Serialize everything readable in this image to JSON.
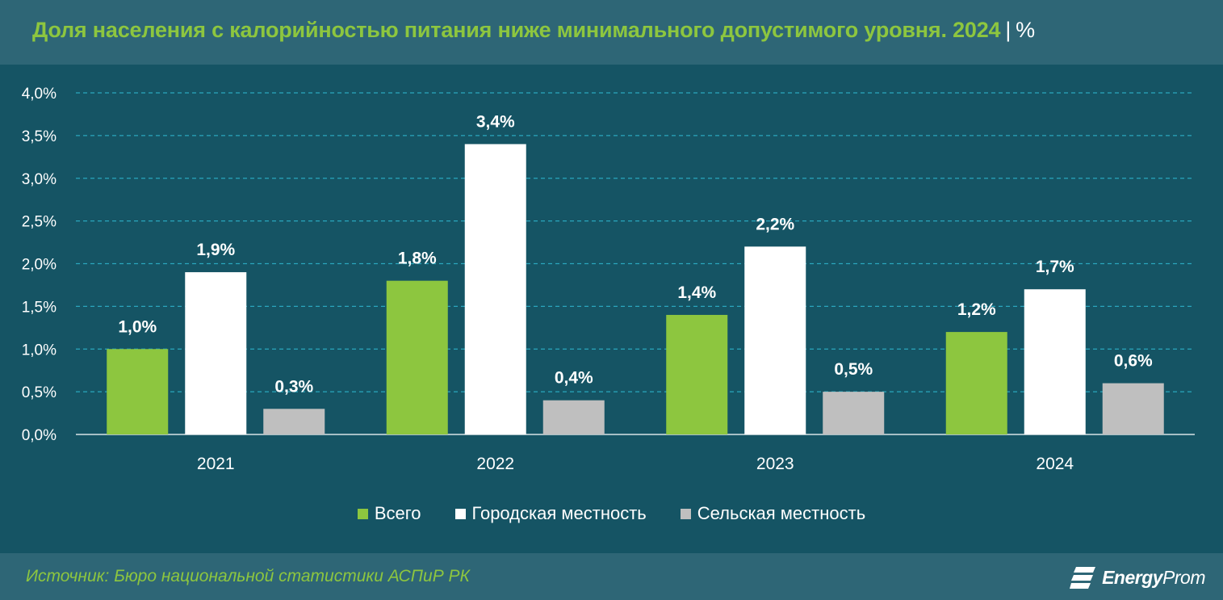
{
  "header": {
    "title": "Доля населения с калорийностью питания ниже минимального допустимого уровня. 2024",
    "separator": "|",
    "unit": "%"
  },
  "footer": {
    "source": "Источник: Бюро национальной статистики АСПиР РК",
    "logo_bold": "Energy",
    "logo_regular": "Prom"
  },
  "colors": {
    "background": "#155464",
    "bar_total": "#8dc63f",
    "bar_urban": "#ffffff",
    "bar_rural": "#bfbfbf",
    "gridline": "#2aa6bd",
    "text": "#ffffff",
    "title": "#8dc63f"
  },
  "chart_data": {
    "type": "bar",
    "title": "Доля населения с калорийностью питания ниже минимального допустимого уровня. 2024",
    "categories": [
      "2021",
      "2022",
      "2023",
      "2024"
    ],
    "series": [
      {
        "name": "Всего",
        "values": [
          1.0,
          1.8,
          1.4,
          1.2
        ],
        "labels": [
          "1,0%",
          "1,8%",
          "1,4%",
          "1,2%"
        ],
        "color": "#8dc63f"
      },
      {
        "name": "Городская местность",
        "values": [
          1.9,
          3.4,
          2.2,
          1.7
        ],
        "labels": [
          "1,9%",
          "3,4%",
          "2,2%",
          "1,7%"
        ],
        "color": "#ffffff"
      },
      {
        "name": "Сельская местность",
        "values": [
          0.3,
          0.4,
          0.5,
          0.6
        ],
        "labels": [
          "0,3%",
          "0,4%",
          "0,5%",
          "0,6%"
        ],
        "color": "#bfbfbf"
      }
    ],
    "y_ticks": [
      "0,0%",
      "0,5%",
      "1,0%",
      "1,5%",
      "2,0%",
      "2,5%",
      "3,0%",
      "3,5%",
      "4,0%"
    ],
    "ylim": [
      0,
      4.0
    ],
    "grid": true,
    "legend_position": "bottom"
  }
}
